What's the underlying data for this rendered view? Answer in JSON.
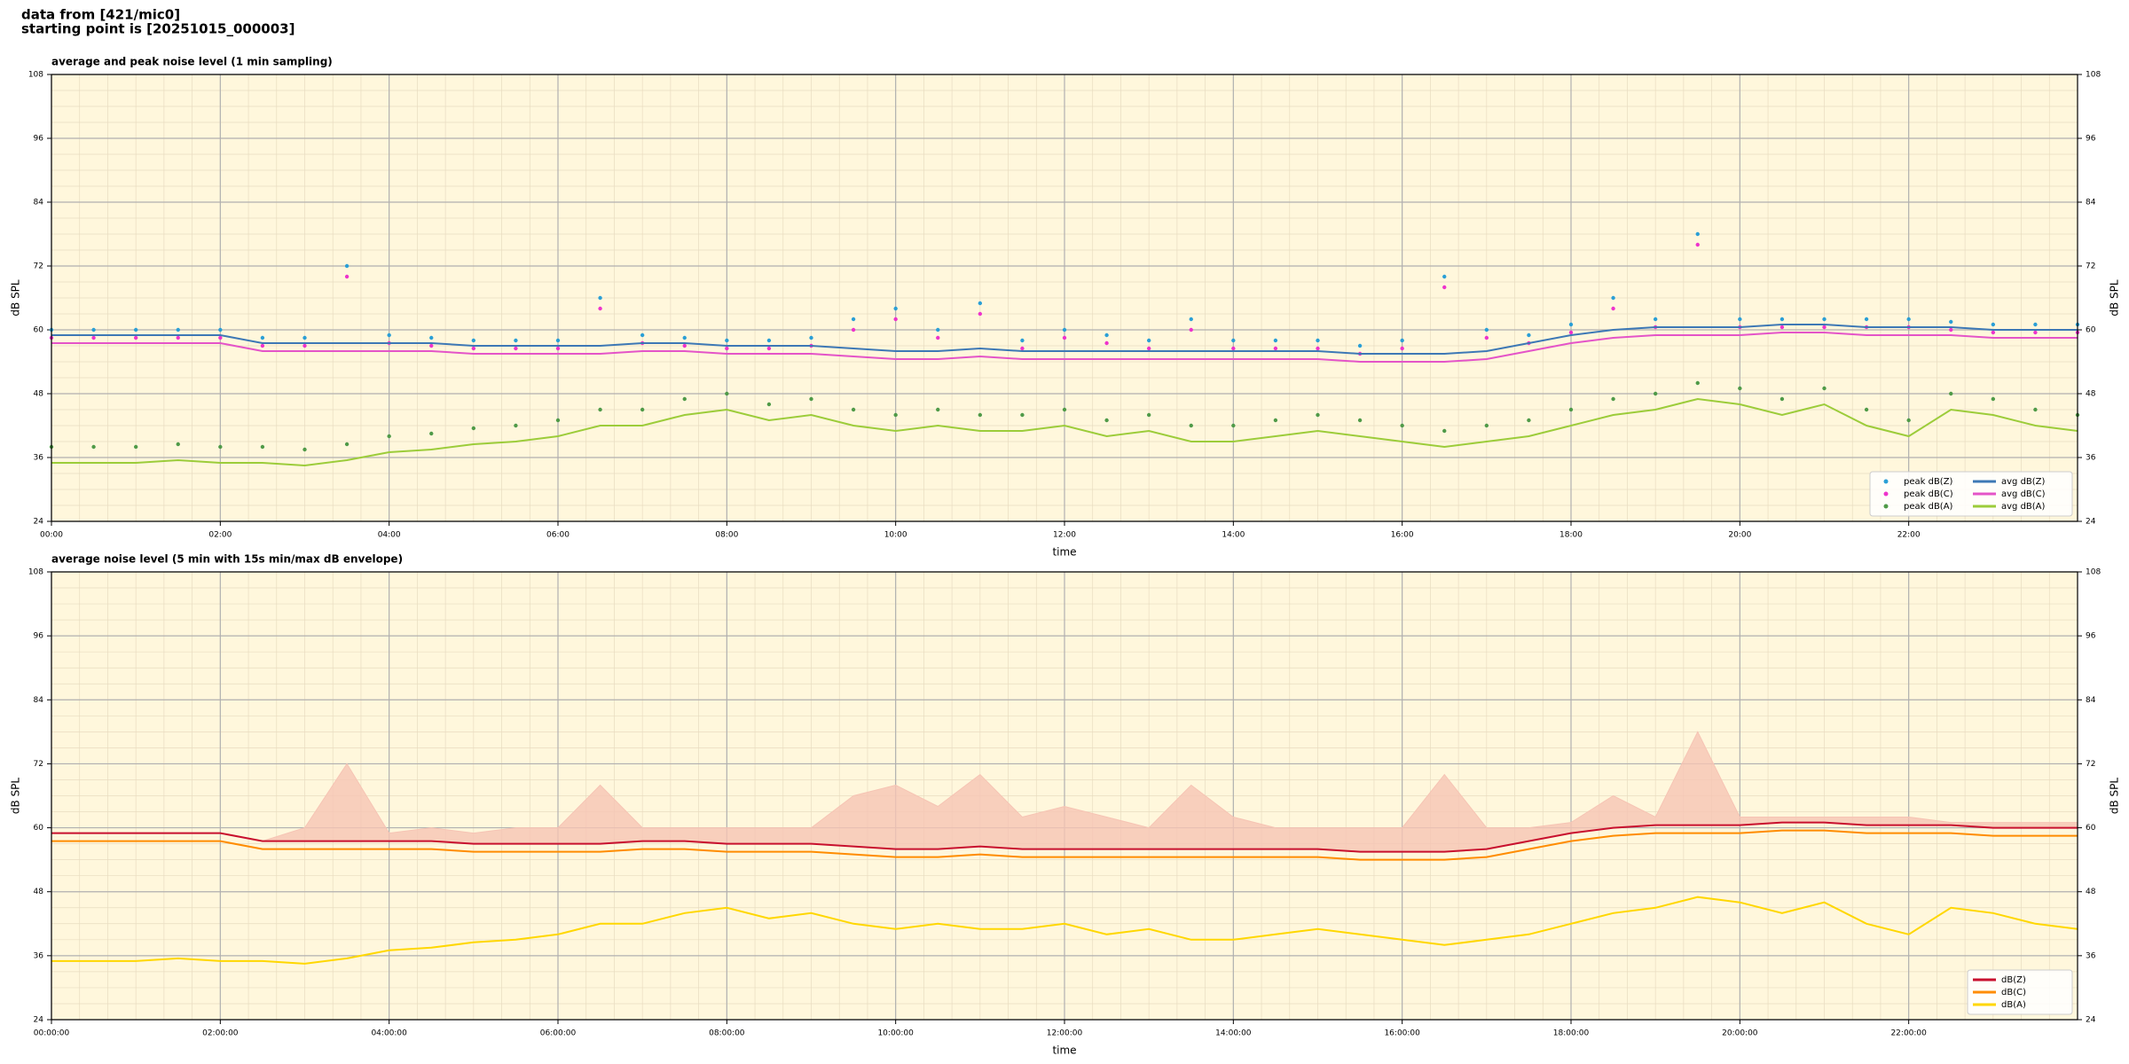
{
  "header": {
    "lines": [
      "data from [421/mic0]",
      "starting point is [20251015_000003]"
    ]
  },
  "chart_data": [
    {
      "type": "line",
      "title": "average and peak noise level (1 min sampling)",
      "xlabel": "time",
      "ylabel": "dB SPL",
      "y2label": "dB SPL",
      "x": [
        "00:00",
        "00:30",
        "01:00",
        "01:30",
        "02:00",
        "02:30",
        "03:00",
        "03:30",
        "04:00",
        "04:30",
        "05:00",
        "05:30",
        "06:00",
        "06:30",
        "07:00",
        "07:30",
        "08:00",
        "08:30",
        "09:00",
        "09:30",
        "10:00",
        "10:30",
        "11:00",
        "11:30",
        "12:00",
        "12:30",
        "13:00",
        "13:30",
        "14:00",
        "14:30",
        "15:00",
        "15:30",
        "16:00",
        "16:30",
        "17:00",
        "17:30",
        "18:00",
        "18:30",
        "19:00",
        "19:30",
        "20:00",
        "20:30",
        "21:00",
        "21:30",
        "22:00",
        "22:30",
        "23:00",
        "23:30",
        "24:00"
      ],
      "xlim": [
        "00:00",
        "24:00"
      ],
      "xticks": [
        "00:00",
        "02:00",
        "04:00",
        "06:00",
        "08:00",
        "10:00",
        "12:00",
        "14:00",
        "16:00",
        "18:00",
        "20:00",
        "22:00"
      ],
      "ylim": [
        24,
        108
      ],
      "yticks": [
        24,
        36,
        48,
        60,
        72,
        84,
        96,
        108
      ],
      "grid": true,
      "legend": "lower right",
      "legend_columns": 2,
      "series": [
        {
          "name": "peak dB(Z)",
          "style": "points",
          "color": "#2a9fd6",
          "values": [
            60,
            60,
            60,
            60,
            60,
            58.5,
            58.5,
            72,
            59,
            58.5,
            58,
            58,
            58,
            66,
            59,
            58.5,
            58,
            58,
            58.5,
            62,
            64,
            60,
            65,
            58,
            60,
            59,
            58,
            62,
            58,
            58,
            58,
            57,
            58,
            70,
            60,
            59,
            61,
            66,
            62,
            78,
            62,
            62,
            62,
            62,
            62,
            61.5,
            61,
            61,
            61
          ]
        },
        {
          "name": "peak dB(C)",
          "style": "points",
          "color": "#ee33cc",
          "values": [
            58.5,
            58.5,
            58.5,
            58.5,
            58.5,
            57,
            57,
            70,
            57.5,
            57,
            56.5,
            56.5,
            56.5,
            64,
            57.5,
            57,
            56.5,
            56.5,
            57,
            60,
            62,
            58.5,
            63,
            56.5,
            58.5,
            57.5,
            56.5,
            60,
            56.5,
            56.5,
            56.5,
            55.5,
            56.5,
            68,
            58.5,
            57.5,
            59.5,
            64,
            60.5,
            76,
            60.5,
            60.5,
            60.5,
            60.5,
            60.5,
            60,
            59.5,
            59.5,
            59.5
          ]
        },
        {
          "name": "peak dB(A)",
          "style": "points",
          "color": "#4f9a48",
          "values": [
            38,
            38,
            38,
            38.5,
            38,
            38,
            37.5,
            38.5,
            40,
            40.5,
            41.5,
            42,
            43,
            45,
            45,
            47,
            48,
            46,
            47,
            45,
            44,
            45,
            44,
            44,
            45,
            43,
            44,
            42,
            42,
            43,
            44,
            43,
            42,
            41,
            42,
            43,
            45,
            47,
            48,
            50,
            49,
            47,
            49,
            45,
            43,
            48,
            47,
            45,
            44
          ]
        },
        {
          "name": "avg dB(Z)",
          "style": "line",
          "color": "#3d78b5",
          "values": [
            59,
            59,
            59,
            59,
            59,
            57.5,
            57.5,
            57.5,
            57.5,
            57.5,
            57,
            57,
            57,
            57,
            57.5,
            57.5,
            57,
            57,
            57,
            56.5,
            56,
            56,
            56.5,
            56,
            56,
            56,
            56,
            56,
            56,
            56,
            56,
            55.5,
            55.5,
            55.5,
            56,
            57.5,
            59,
            60,
            60.5,
            60.5,
            60.5,
            61,
            61,
            60.5,
            60.5,
            60.5,
            60,
            60,
            60
          ]
        },
        {
          "name": "avg dB(C)",
          "style": "line",
          "color": "#e454c8",
          "values": [
            57.5,
            57.5,
            57.5,
            57.5,
            57.5,
            56,
            56,
            56,
            56,
            56,
            55.5,
            55.5,
            55.5,
            55.5,
            56,
            56,
            55.5,
            55.5,
            55.5,
            55,
            54.5,
            54.5,
            55,
            54.5,
            54.5,
            54.5,
            54.5,
            54.5,
            54.5,
            54.5,
            54.5,
            54,
            54,
            54,
            54.5,
            56,
            57.5,
            58.5,
            59,
            59,
            59,
            59.5,
            59.5,
            59,
            59,
            59,
            58.5,
            58.5,
            58.5
          ]
        },
        {
          "name": "avg dB(A)",
          "style": "line",
          "color": "#9ccc3a",
          "values": [
            35,
            35,
            35,
            35.5,
            35,
            35,
            34.5,
            35.5,
            37,
            37.5,
            38.5,
            39,
            40,
            42,
            42,
            44,
            45,
            43,
            44,
            42,
            41,
            42,
            41,
            41,
            42,
            40,
            41,
            39,
            39,
            40,
            41,
            40,
            39,
            38,
            39,
            40,
            42,
            44,
            45,
            47,
            46,
            44,
            46,
            42,
            40,
            45,
            44,
            42,
            41
          ]
        }
      ]
    },
    {
      "type": "line",
      "title": "average noise level (5 min with 15s min/max dB envelope)",
      "xlabel": "time",
      "ylabel": "dB SPL",
      "y2label": "dB SPL",
      "x": [
        "00:00:00",
        "00:30:00",
        "01:00:00",
        "01:30:00",
        "02:00:00",
        "02:30:00",
        "03:00:00",
        "03:30:00",
        "04:00:00",
        "04:30:00",
        "05:00:00",
        "05:30:00",
        "06:00:00",
        "06:30:00",
        "07:00:00",
        "07:30:00",
        "08:00:00",
        "08:30:00",
        "09:00:00",
        "09:30:00",
        "10:00:00",
        "10:30:00",
        "11:00:00",
        "11:30:00",
        "12:00:00",
        "12:30:00",
        "13:00:00",
        "13:30:00",
        "14:00:00",
        "14:30:00",
        "15:00:00",
        "15:30:00",
        "16:00:00",
        "16:30:00",
        "17:00:00",
        "17:30:00",
        "18:00:00",
        "18:30:00",
        "19:00:00",
        "19:30:00",
        "20:00:00",
        "20:30:00",
        "21:00:00",
        "21:30:00",
        "22:00:00",
        "22:30:00",
        "23:00:00",
        "23:30:00",
        "24:00:00"
      ],
      "xlim": [
        "00:00:00",
        "24:00:00"
      ],
      "xticks": [
        "00:00:00",
        "02:00:00",
        "04:00:00",
        "06:00:00",
        "08:00:00",
        "10:00:00",
        "12:00:00",
        "14:00:00",
        "16:00:00",
        "18:00:00",
        "20:00:00",
        "22:00:00"
      ],
      "ylim": [
        24,
        108
      ],
      "yticks": [
        24,
        36,
        48,
        60,
        72,
        84,
        96,
        108
      ],
      "grid": true,
      "legend": "lower right",
      "legend_columns": 1,
      "envelope": {
        "color": "#f6c4b4",
        "values": [
          59,
          59,
          59,
          59,
          59,
          57.5,
          60,
          72,
          59,
          60,
          59,
          60,
          60,
          68,
          60,
          60,
          60,
          60,
          60,
          66,
          68,
          64,
          70,
          62,
          64,
          62,
          60,
          68,
          62,
          60,
          60,
          60,
          60,
          70,
          60,
          60,
          61,
          66,
          62,
          78,
          62,
          62,
          62,
          62,
          62,
          61,
          61,
          61,
          61
        ]
      },
      "series": [
        {
          "name": "dB(Z)",
          "style": "line",
          "color": "#c8102e",
          "values": [
            59,
            59,
            59,
            59,
            59,
            57.5,
            57.5,
            57.5,
            57.5,
            57.5,
            57,
            57,
            57,
            57,
            57.5,
            57.5,
            57,
            57,
            57,
            56.5,
            56,
            56,
            56.5,
            56,
            56,
            56,
            56,
            56,
            56,
            56,
            56,
            55.5,
            55.5,
            55.5,
            56,
            57.5,
            59,
            60,
            60.5,
            60.5,
            60.5,
            61,
            61,
            60.5,
            60.5,
            60.5,
            60,
            60,
            60
          ]
        },
        {
          "name": "dB(C)",
          "style": "line",
          "color": "#ff8c00",
          "values": [
            57.5,
            57.5,
            57.5,
            57.5,
            57.5,
            56,
            56,
            56,
            56,
            56,
            55.5,
            55.5,
            55.5,
            55.5,
            56,
            56,
            55.5,
            55.5,
            55.5,
            55,
            54.5,
            54.5,
            55,
            54.5,
            54.5,
            54.5,
            54.5,
            54.5,
            54.5,
            54.5,
            54.5,
            54,
            54,
            54,
            54.5,
            56,
            57.5,
            58.5,
            59,
            59,
            59,
            59.5,
            59.5,
            59,
            59,
            59,
            58.5,
            58.5,
            58.5
          ]
        },
        {
          "name": "dB(A)",
          "style": "line",
          "color": "#ffd700",
          "values": [
            35,
            35,
            35,
            35.5,
            35,
            35,
            34.5,
            35.5,
            37,
            37.5,
            38.5,
            39,
            40,
            42,
            42,
            44,
            45,
            43,
            44,
            42,
            41,
            42,
            41,
            41,
            42,
            40,
            41,
            39,
            39,
            40,
            41,
            40,
            39,
            38,
            39,
            40,
            42,
            44,
            45,
            47,
            46,
            44,
            46,
            42,
            40,
            45,
            44,
            42,
            41
          ]
        }
      ]
    }
  ]
}
